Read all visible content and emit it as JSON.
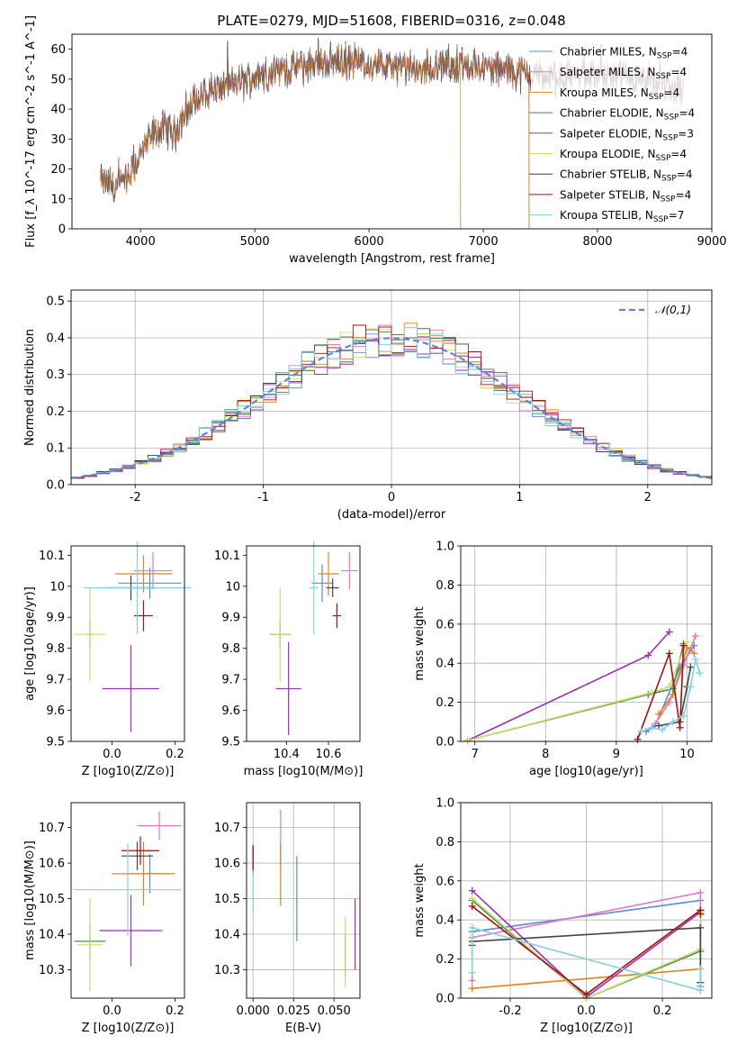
{
  "figure": {
    "title": "PLATE=0279, MJD=51608, FIBERID=0316, z=0.048"
  },
  "model_colors": [
    "#5b8bd6",
    "#e377c2",
    "#e6821e",
    "#4f8a4f",
    "#9a2fb6",
    "#c5e06a",
    "#444444",
    "#a50f15",
    "#7fd3dc"
  ],
  "chart_data": [
    {
      "id": "spectrum",
      "type": "line",
      "title": "PLATE=0279, MJD=51608, FIBERID=0316, z=0.048",
      "xlabel": "wavelength [Angstrom, rest frame]",
      "ylabel": "Flux [f_λ 10^-17 erg cm^-2 s^-1 A^-1]",
      "xlim": [
        3400,
        9000
      ],
      "ylim": [
        0,
        65
      ],
      "xticks": [
        4000,
        5000,
        6000,
        7000,
        8000,
        9000
      ],
      "yticks": [
        0,
        10,
        20,
        30,
        40,
        50,
        60
      ],
      "legend_position": "upper-right",
      "legend": [
        {
          "model": "Chabrier MILES",
          "nssp": "4"
        },
        {
          "model": "Salpeter MILES",
          "nssp": "4"
        },
        {
          "model": "Kroupa MILES",
          "nssp": "4"
        },
        {
          "model": "Chabrier ELODIE",
          "nssp": "4"
        },
        {
          "model": "Salpeter ELODIE",
          "nssp": "3"
        },
        {
          "model": "Kroupa ELODIE",
          "nssp": "4"
        },
        {
          "model": "Chabrier STELIB",
          "nssp": "4"
        },
        {
          "model": "Salpeter STELIB",
          "nssp": "4"
        },
        {
          "model": "Kroupa STELIB",
          "nssp": "7"
        }
      ],
      "continuum": {
        "x": [
          3650,
          3800,
          3900,
          4000,
          4100,
          4200,
          4300,
          4400,
          4600,
          4800,
          5000,
          5200,
          5400,
          5600,
          5800,
          6000,
          6200,
          6400,
          6600,
          6800,
          7000,
          7200,
          7400,
          7600,
          7800,
          8000,
          8200,
          8400,
          8600,
          8750
        ],
        "y": [
          16,
          14,
          17,
          25,
          31,
          34,
          32,
          40,
          46,
          48,
          51,
          53,
          54,
          56,
          56,
          55,
          54,
          53,
          54,
          55,
          54,
          53,
          52,
          50,
          51,
          51,
          50,
          49,
          48,
          46
        ]
      },
      "model_coverage": {
        "ELODIE_end": 6800,
        "MILES_end": 7400,
        "STELIB_end": 8750,
        "start": 3650
      }
    },
    {
      "id": "residuals",
      "type": "histogram",
      "xlabel": "(data-model)/error",
      "ylabel": "Normed distribution",
      "xlim": [
        -2.5,
        2.5
      ],
      "ylim": [
        0,
        0.53
      ],
      "xticks": [
        -2,
        -1,
        0,
        1,
        2
      ],
      "yticks": [
        0,
        0.1,
        0.2,
        0.3,
        0.4,
        0.5
      ],
      "legend": "𝒩(0,1)",
      "legend_position": "upper-right",
      "bin_width": 0.1,
      "reference_curve": "normal(0,1)"
    },
    {
      "id": "age_vs_Z",
      "type": "errorbar",
      "xlabel": "Z [log10(Z/Z⊙)]",
      "ylabel": "age  [log10(age/yr)]",
      "xlim": [
        -0.13,
        0.23
      ],
      "ylim": [
        9.5,
        10.13
      ],
      "xticks": [
        0.0,
        0.2
      ],
      "yticks": [
        9.5,
        9.6,
        9.7,
        9.8,
        9.9,
        10.0,
        10.1
      ],
      "points": [
        {
          "x": 0.12,
          "xerr": 0.1,
          "y": 10.01,
          "yerr": 0.05
        },
        {
          "x": 0.13,
          "xerr": 0.06,
          "y": 10.05,
          "yerr": 0.06
        },
        {
          "x": 0.1,
          "xerr": 0.09,
          "y": 10.04,
          "yerr": 0.06
        },
        {
          "x": -0.07,
          "xerr": 0.01,
          "y": 9.845,
          "yerr": 0.045
        },
        {
          "x": 0.06,
          "xerr": 0.09,
          "y": 9.67,
          "yerr": 0.14
        },
        {
          "x": -0.07,
          "xerr": 0.05,
          "y": 9.845,
          "yerr": 0.15
        },
        {
          "x": 0.06,
          "xerr": 0.08,
          "y": 9.995,
          "yerr": 0.04
        },
        {
          "x": 0.1,
          "xerr": 0.03,
          "y": 9.905,
          "yerr": 0.05
        },
        {
          "x": 0.08,
          "xerr": 0.17,
          "y": 9.995,
          "yerr": 0.15
        }
      ]
    },
    {
      "id": "age_vs_mass",
      "type": "errorbar",
      "xlabel": "mass [log10(M/M⊙)]",
      "ylabel": "",
      "xlim": [
        10.21,
        10.75
      ],
      "ylim": [
        9.5,
        10.13
      ],
      "xticks": [
        10.4,
        10.6
      ],
      "yticks": [
        9.5,
        9.6,
        9.7,
        9.8,
        9.9,
        10.0,
        10.1
      ],
      "points": [
        {
          "x": 10.57,
          "xerr": 0.05,
          "y": 10.01,
          "yerr": 0.06
        },
        {
          "x": 10.7,
          "xerr": 0.04,
          "y": 10.05,
          "yerr": 0.06
        },
        {
          "x": 10.6,
          "xerr": 0.05,
          "y": 10.04,
          "yerr": 0.07
        },
        {
          "x": 10.37,
          "xerr": 0.05,
          "y": 9.845,
          "yerr": 0.045
        },
        {
          "x": 10.41,
          "xerr": 0.06,
          "y": 9.67,
          "yerr": 0.15
        },
        {
          "x": 10.37,
          "xerr": 0.05,
          "y": 9.845,
          "yerr": 0.15
        },
        {
          "x": 10.62,
          "xerr": 0.03,
          "y": 9.995,
          "yerr": 0.03
        },
        {
          "x": 10.64,
          "xerr": 0.02,
          "y": 9.905,
          "yerr": 0.04
        },
        {
          "x": 10.53,
          "xerr": 0.02,
          "y": 9.995,
          "yerr": 0.15
        }
      ]
    },
    {
      "id": "massweight_vs_age",
      "type": "line",
      "xlabel": "age  [log10(age/yr)]",
      "ylabel": "mass weight",
      "xlim": [
        6.8,
        10.35
      ],
      "ylim": [
        0,
        1.0
      ],
      "xticks": [
        7,
        8,
        9,
        10
      ],
      "yticks": [
        0.0,
        0.2,
        0.4,
        0.6,
        0.8,
        1.0
      ],
      "series": [
        {
          "x": [
            9.42,
            9.55,
            9.9,
            10.1
          ],
          "y": [
            0.05,
            0.08,
            0.38,
            0.49
          ]
        },
        {
          "x": [
            9.55,
            9.75,
            9.95,
            10.12
          ],
          "y": [
            0.09,
            0.2,
            0.39,
            0.54
          ]
        },
        {
          "x": [
            9.6,
            9.8,
            10.0,
            10.1
          ],
          "y": [
            0.14,
            0.24,
            0.48,
            0.45
          ]
        },
        {
          "x": [
            6.9,
            9.45,
            9.8,
            9.95
          ],
          "y": [
            0.005,
            0.24,
            0.27,
            0.5
          ]
        },
        {
          "x": [
            6.9,
            9.45,
            9.75
          ],
          "y": [
            0.005,
            0.44,
            0.56
          ]
        },
        {
          "x": [
            6.9,
            9.5,
            9.75,
            10.0
          ],
          "y": [
            0.005,
            0.25,
            0.28,
            0.51
          ]
        },
        {
          "x": [
            9.6,
            9.9,
            10.0,
            10.05
          ],
          "y": [
            0.08,
            0.1,
            0.28,
            0.38
          ]
        },
        {
          "x": [
            9.3,
            9.75,
            9.9,
            9.95
          ],
          "y": [
            0.01,
            0.45,
            0.07,
            0.49
          ]
        },
        {
          "x": [
            9.35,
            9.5,
            9.65,
            9.8,
            9.95,
            10.05,
            10.12,
            10.18
          ],
          "y": [
            0.05,
            0.07,
            0.06,
            0.1,
            0.13,
            0.28,
            0.42,
            0.35
          ]
        }
      ]
    },
    {
      "id": "mass_vs_Z",
      "type": "errorbar",
      "xlabel": "Z [log10(Z/Z⊙)]",
      "ylabel": "mass [log10(M/M⊙)]",
      "xlim": [
        -0.13,
        0.23
      ],
      "ylim": [
        10.22,
        10.77
      ],
      "xticks": [
        0.0,
        0.2
      ],
      "yticks": [
        10.3,
        10.4,
        10.5,
        10.6,
        10.7
      ],
      "points": [
        {
          "x": 0.12,
          "xerr": 0.07,
          "y": 10.57,
          "yerr": 0.055
        },
        {
          "x": 0.15,
          "xerr": 0.07,
          "y": 10.705,
          "yerr": 0.04
        },
        {
          "x": 0.1,
          "xerr": 0.1,
          "y": 10.57,
          "yerr": 0.09
        },
        {
          "x": -0.07,
          "xerr": 0.05,
          "y": 10.38,
          "yerr": 0.05
        },
        {
          "x": 0.06,
          "xerr": 0.1,
          "y": 10.41,
          "yerr": 0.1
        },
        {
          "x": -0.07,
          "xerr": 0.04,
          "y": 10.37,
          "yerr": 0.13
        },
        {
          "x": 0.08,
          "xerr": 0.05,
          "y": 10.62,
          "yerr": 0.04
        },
        {
          "x": 0.09,
          "xerr": 0.06,
          "y": 10.635,
          "yerr": 0.04
        },
        {
          "x": 0.05,
          "xerr": 0.17,
          "y": 10.525,
          "yerr": 0.13
        }
      ]
    },
    {
      "id": "mass_vs_ebv",
      "type": "errorbar",
      "xlabel": "E(B-V)",
      "ylabel": "",
      "xlim": [
        -0.004,
        0.066
      ],
      "ylim": [
        10.22,
        10.77
      ],
      "xticks": [
        0.0,
        0.025,
        0.05
      ],
      "xticklabels": [
        "0.000",
        "0.025",
        "0.050"
      ],
      "yticks": [
        10.3,
        10.4,
        10.5,
        10.6,
        10.7
      ],
      "points": [
        {
          "x": 0.027,
          "xerr": 0,
          "y": 10.5,
          "yerr": 0.12
        },
        {
          "x": 0.017,
          "xerr": 0,
          "y": 10.67,
          "yerr": 0.08
        },
        {
          "x": 0.017,
          "xerr": 0,
          "y": 10.57,
          "yerr": 0.09
        },
        {
          "x": 0.057,
          "xerr": 0,
          "y": 10.34,
          "yerr": 0.06
        },
        {
          "x": 0.063,
          "xerr": 0,
          "y": 10.4,
          "yerr": 0.1
        },
        {
          "x": 0.057,
          "xerr": 0,
          "y": 10.35,
          "yerr": 0.1
        },
        {
          "x": 0.0,
          "xerr": 0,
          "y": 10.61,
          "yerr": 0.04
        },
        {
          "x": 0.0,
          "xerr": 0,
          "y": 10.61,
          "yerr": 0.04
        },
        {
          "x": 0.0,
          "xerr": 0,
          "y": 10.52,
          "yerr": 0.06
        }
      ]
    },
    {
      "id": "massweight_vs_Z",
      "type": "line",
      "xlabel": "Z [log10(Z/Z⊙)]",
      "ylabel": "mass weight",
      "xlim": [
        -0.33,
        0.33
      ],
      "ylim": [
        0,
        1.0
      ],
      "xticks": [
        -0.2,
        0.0,
        0.2
      ],
      "yticks": [
        0.0,
        0.2,
        0.4,
        0.6,
        0.8,
        1.0
      ],
      "series": [
        {
          "x": [
            -0.3,
            0.3,
            0.3
          ],
          "y": [
            0.34,
            0.5,
            0.06
          ]
        },
        {
          "x": [
            -0.3,
            -0.3,
            0.3,
            0.3
          ],
          "y": [
            0.09,
            0.31,
            0.54,
            0.04
          ]
        },
        {
          "x": [
            -0.3,
            0.3,
            0.3
          ],
          "y": [
            0.05,
            0.15,
            0.45
          ]
        },
        {
          "x": [
            -0.3,
            0.0,
            0.3,
            0.3
          ],
          "y": [
            0.5,
            0.0,
            0.24,
            0.45
          ]
        },
        {
          "x": [
            -0.3,
            0.0,
            0.3
          ],
          "y": [
            0.55,
            0.005,
            0.44
          ]
        },
        {
          "x": [
            -0.3,
            0.0,
            0.3,
            0.3
          ],
          "y": [
            0.51,
            0.0,
            0.25,
            0.44
          ]
        },
        {
          "x": [
            -0.3,
            -0.3,
            0.3,
            0.3
          ],
          "y": [
            0.27,
            0.29,
            0.36,
            0.08
          ]
        },
        {
          "x": [
            -0.3,
            0.0,
            0.3,
            0.3
          ],
          "y": [
            0.47,
            0.02,
            0.45,
            0.43
          ]
        },
        {
          "x": [
            -0.3,
            -0.3,
            0.3,
            0.3
          ],
          "y": [
            0.13,
            0.36,
            0.04,
            0.15
          ]
        }
      ]
    }
  ]
}
